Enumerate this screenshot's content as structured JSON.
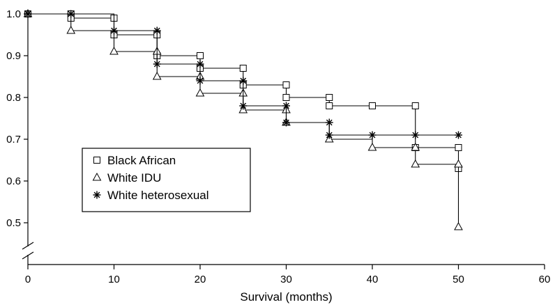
{
  "chart_data": {
    "type": "line",
    "subtype": "kaplan-meier step curves",
    "xlabel": "Survival (months)",
    "ylabel": "",
    "xlim": [
      0,
      60
    ],
    "ylim": [
      0.45,
      1.0
    ],
    "xticks": [
      0,
      10,
      20,
      30,
      40,
      50,
      60
    ],
    "yticks": [
      0.5,
      0.6,
      0.7,
      0.8,
      0.9,
      1.0
    ],
    "xtick_labels": [
      "0",
      "10",
      "20",
      "30",
      "40",
      "50",
      "60"
    ],
    "ytick_labels": [
      "0.5",
      "0.6",
      "0.7",
      "0.8",
      "0.9",
      "1.0"
    ],
    "y_axis_break": true,
    "grid": false,
    "legend_position": "lower-left",
    "series": [
      {
        "name": "Black African",
        "marker": "square",
        "x": [
          0,
          5,
          10,
          15,
          20,
          25,
          30,
          35,
          40,
          45,
          50
        ],
        "y": [
          1.0,
          0.99,
          0.95,
          0.9,
          0.87,
          0.83,
          0.8,
          0.78,
          0.78,
          0.68,
          0.63
        ],
        "markers": [
          [
            0,
            1.0
          ],
          [
            5,
            1.0
          ],
          [
            5,
            0.99
          ],
          [
            10,
            0.99
          ],
          [
            10,
            0.95
          ],
          [
            15,
            0.95
          ],
          [
            15,
            0.9
          ],
          [
            20,
            0.9
          ],
          [
            20,
            0.87
          ],
          [
            25,
            0.87
          ],
          [
            25,
            0.83
          ],
          [
            30,
            0.83
          ],
          [
            30,
            0.8
          ],
          [
            35,
            0.8
          ],
          [
            35,
            0.78
          ],
          [
            40,
            0.78
          ],
          [
            45,
            0.78
          ],
          [
            45,
            0.68
          ],
          [
            50,
            0.68
          ],
          [
            50,
            0.63
          ]
        ]
      },
      {
        "name": "White IDU",
        "marker": "triangle",
        "x": [
          0,
          5,
          10,
          15,
          20,
          25,
          30,
          35,
          40,
          45,
          50
        ],
        "y": [
          1.0,
          0.96,
          0.91,
          0.85,
          0.81,
          0.77,
          0.74,
          0.7,
          0.68,
          0.64,
          0.49
        ],
        "markers": [
          [
            0,
            1.0
          ],
          [
            5,
            0.96
          ],
          [
            10,
            0.91
          ],
          [
            15,
            0.91
          ],
          [
            15,
            0.85
          ],
          [
            20,
            0.85
          ],
          [
            20,
            0.81
          ],
          [
            25,
            0.81
          ],
          [
            25,
            0.77
          ],
          [
            30,
            0.77
          ],
          [
            30,
            0.74
          ],
          [
            35,
            0.7
          ],
          [
            40,
            0.68
          ],
          [
            45,
            0.68
          ],
          [
            45,
            0.64
          ],
          [
            50,
            0.64
          ],
          [
            50,
            0.49
          ]
        ]
      },
      {
        "name": "White heterosexual",
        "marker": "asterisk",
        "x": [
          0,
          5,
          10,
          15,
          20,
          25,
          30,
          35,
          40,
          45,
          50
        ],
        "y": [
          1.0,
          1.0,
          0.96,
          0.88,
          0.84,
          0.78,
          0.74,
          0.71,
          0.71,
          0.71,
          0.71
        ],
        "markers": [
          [
            0,
            1.0
          ],
          [
            5,
            1.0
          ],
          [
            10,
            0.96
          ],
          [
            15,
            0.96
          ],
          [
            15,
            0.88
          ],
          [
            20,
            0.88
          ],
          [
            20,
            0.84
          ],
          [
            25,
            0.84
          ],
          [
            25,
            0.78
          ],
          [
            30,
            0.78
          ],
          [
            30,
            0.74
          ],
          [
            35,
            0.74
          ],
          [
            35,
            0.71
          ],
          [
            40,
            0.71
          ],
          [
            45,
            0.71
          ],
          [
            50,
            0.71
          ]
        ]
      }
    ]
  }
}
